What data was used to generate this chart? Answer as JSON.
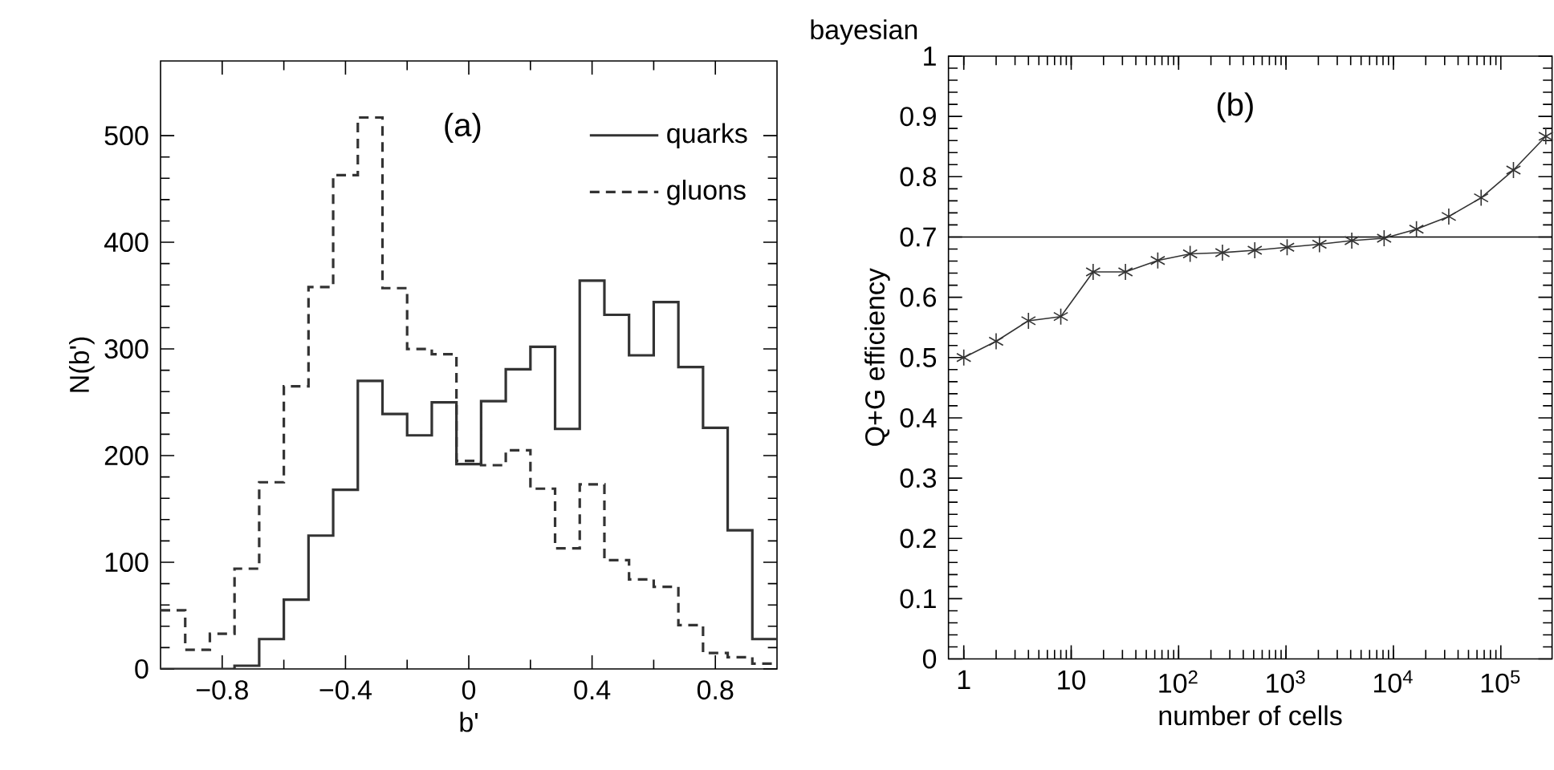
{
  "chart_data": [
    {
      "type": "histogram",
      "xlabel": "b'",
      "ylabel": "N(b')",
      "bins": [
        -1,
        -0.92,
        -0.84,
        -0.76,
        -0.68,
        -0.6,
        -0.52,
        -0.44,
        -0.36,
        -0.28,
        -0.2,
        -0.12,
        -0.04,
        0.04,
        0.12,
        0.2,
        0.28,
        0.36,
        0.44,
        0.52,
        0.6,
        0.68,
        0.76,
        0.84,
        0.92,
        1
      ],
      "series": [
        {
          "name": "quarks",
          "color": "#333333",
          "line_style": "solid",
          "values": [
            0,
            0,
            0,
            3,
            28,
            65,
            125,
            168,
            270,
            239,
            219,
            250,
            192,
            251,
            281,
            302,
            225,
            364,
            332,
            294,
            344,
            283,
            226,
            130,
            28
          ]
        },
        {
          "name": "gluons",
          "color": "#333333",
          "line_style": "dashed",
          "values": [
            55,
            18,
            33,
            94,
            175,
            265,
            358,
            463,
            517,
            357,
            300,
            295,
            195,
            191,
            205,
            169,
            113,
            173,
            102,
            84,
            77,
            41,
            15,
            11,
            5
          ]
        }
      ],
      "xlim": [
        -1,
        1
      ],
      "ylim": [
        0,
        570
      ],
      "xticks": [
        {
          "value": -0.8,
          "label": "−0.8"
        },
        {
          "value": -0.4,
          "label": "−0.4"
        },
        0,
        0.4,
        0.8
      ],
      "yticks": [
        0,
        100,
        200,
        300,
        400,
        500
      ],
      "legend": "top right",
      "annotations": [
        "(a)"
      ]
    },
    {
      "type": "line",
      "title": "bayesian",
      "xlabel": "number of cells",
      "ylabel": "Q+G efficiency",
      "x": [
        1,
        2,
        4,
        8,
        16,
        32,
        64,
        128,
        256,
        512,
        1024,
        2048,
        4096,
        8192,
        16384,
        32768,
        65536,
        131072,
        262144
      ],
      "values": [
        0.5,
        0.527,
        0.561,
        0.568,
        0.642,
        0.642,
        0.661,
        0.672,
        0.674,
        0.678,
        0.683,
        0.688,
        0.694,
        0.698,
        0.713,
        0.734,
        0.765,
        0.811,
        0.867
      ],
      "color": "#333333",
      "marker": "cross",
      "log": "x",
      "xlim": [
        0.72,
        300000
      ],
      "ylim": [
        0,
        1
      ],
      "xticks": [
        1,
        10,
        {
          "value": 100,
          "label": "10$^{2}$"
        },
        {
          "value": 1000,
          "label": "10$^{3}$"
        },
        {
          "value": 10000,
          "label": "10$^{4}$"
        },
        {
          "value": 100000,
          "label": "10$^{5}$"
        }
      ],
      "yticks": [
        0,
        0.1,
        0.2,
        0.3,
        0.4,
        0.5,
        0.6,
        0.7,
        0.8,
        0.9,
        1
      ],
      "ref_lines": [
        {
          "axis": "y",
          "value": 0.7
        }
      ],
      "annotations": [
        "(b)"
      ]
    }
  ]
}
